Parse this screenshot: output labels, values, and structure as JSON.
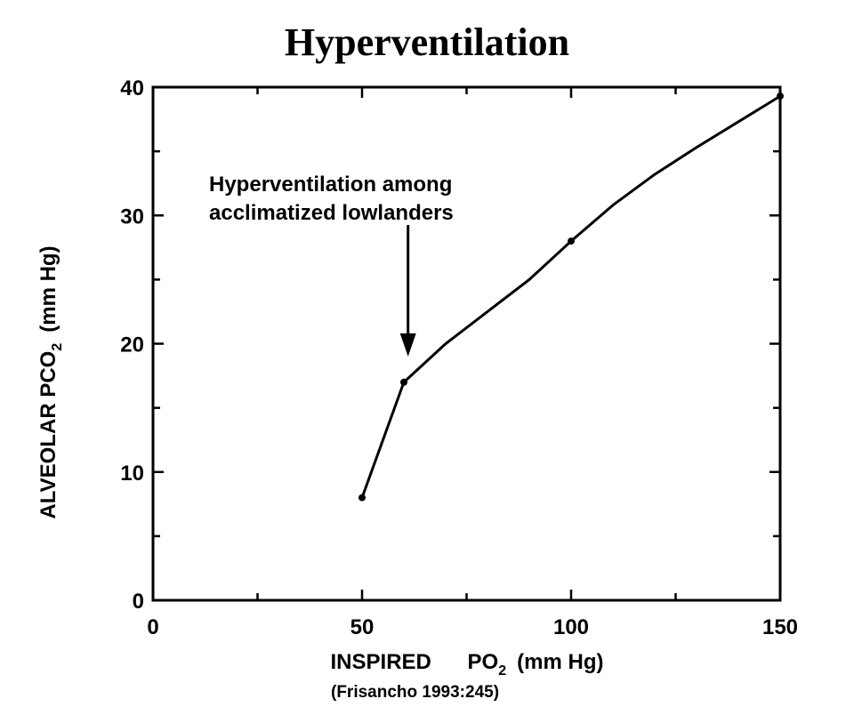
{
  "chart_data": {
    "type": "line",
    "title": "Hyperventilation",
    "xlabel_main": "INSPIRED",
    "xlabel_po": "PO",
    "xlabel_sub": "2",
    "xlabel_unit": "(mm Hg)",
    "ylabel_main": "ALVEOLAR PCO",
    "ylabel_sub": "2",
    "ylabel_unit": "(mm Hg)",
    "xlim": [
      0,
      150
    ],
    "ylim": [
      0,
      40
    ],
    "x_ticks": [
      0,
      50,
      100,
      150
    ],
    "y_ticks": [
      0,
      10,
      20,
      30,
      40
    ],
    "series": [
      {
        "x": [
          50,
          60,
          70,
          80,
          90,
          100,
          110,
          120,
          130,
          140,
          150
        ],
        "y": [
          8,
          17,
          20,
          22.5,
          25,
          28,
          30.8,
          33.2,
          35.3,
          37.3,
          39.3
        ]
      }
    ],
    "markers_at": [
      50,
      60,
      100,
      150
    ],
    "annotation": {
      "lines": [
        "Hyperventilation  among",
        "acclimatized  lowlanders"
      ],
      "arrow_x": 61,
      "arrow_y": 19
    },
    "source": "(Frisancho 1993:245)"
  }
}
